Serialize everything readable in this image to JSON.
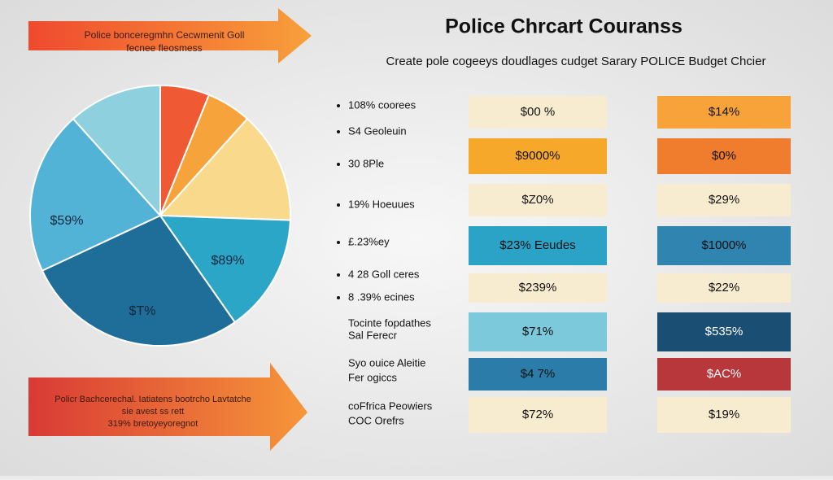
{
  "header": {
    "title": "Police Chrcart Couranss",
    "subtitle": "Create pole cogeeys doudlages cudget Sarary POLICE Budget Chcier"
  },
  "banners": {
    "top": [
      "Police bonceregmhn Cecwmenit Goll",
      "fecnee fleosmess"
    ],
    "bottom": [
      "Policr Bachcerechal. Iatiatens bootrcho Lavtatche",
      "sie avest ss rett",
      "319% bretoyeyoregnot"
    ]
  },
  "pie": {
    "labels": [
      "$59%",
      "$89%",
      "$T%"
    ]
  },
  "list": [
    [
      "108% coorees"
    ],
    [
      "S4 Geoleuin"
    ],
    [
      "30 8Ple"
    ],
    [
      "19% Hoeuues"
    ],
    [
      "£.23%ey"
    ],
    [
      "4 28 Goll ceres"
    ],
    [
      "8 .39% ecines"
    ],
    [
      "Tocinte fopdathes",
      "Sal Ferecr"
    ],
    [
      "Syo ouice Aleitie",
      "Fer ogiccs"
    ],
    [
      "coFfrica Peowiers",
      "COC Orefrs"
    ]
  ],
  "table": {
    "rows": [
      [
        "$00 %",
        "$14%"
      ],
      [
        "$9000%",
        "$0%"
      ],
      [
        "$Z0%",
        "$29%"
      ],
      [
        "$23% Eeudes",
        "$1000%"
      ],
      [
        "$239%",
        "$22%"
      ],
      [
        "$71%",
        "$535%"
      ],
      [
        "$4 7%",
        "$AC%"
      ],
      [
        "$72%",
        "$19%"
      ]
    ]
  }
}
